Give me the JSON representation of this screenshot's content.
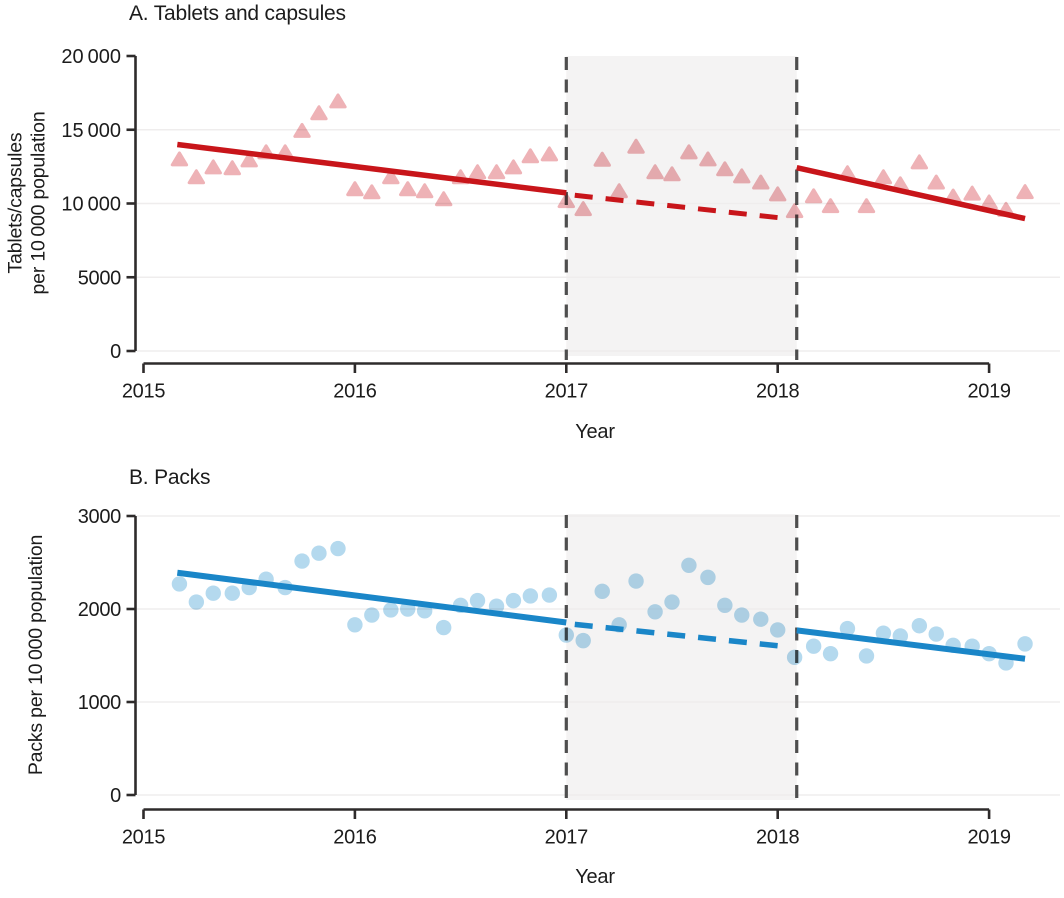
{
  "figure": {
    "shaded_period_years": [
      2017.0,
      2018.09
    ],
    "colors": {
      "band": "#f4f3f3",
      "gridline": "#efeded",
      "dashed_guide": "#4e4e4e",
      "axis": "#2e2b2b",
      "text": "#1c1c1c",
      "panel_a_trend": "#c8151a",
      "panel_a_marker": "#eeb2b6",
      "panel_b_trend": "#1a86c8",
      "panel_b_marker": "#b4d9ee"
    }
  },
  "chart_data": [
    {
      "type": "scatter",
      "panel_id": "a",
      "panel_label": "A. Tablets and capsules",
      "xlabel": "Year",
      "ylabel_lines": [
        "Tablets/capsules",
        "per 10 000 population"
      ],
      "marker": "triangle",
      "colors": {
        "trend": "#c8151a",
        "marker": "#eeb2b6"
      },
      "xlim": [
        2015,
        2019
      ],
      "ylim": [
        0,
        20000
      ],
      "x_ticks": [
        "2015",
        "2016",
        "2017",
        "2018",
        "2019"
      ],
      "y_ticks": [
        {
          "v": 0,
          "label": "0"
        },
        {
          "v": 5000,
          "label": "5000"
        },
        {
          "v": 10000,
          "label": "10 000"
        },
        {
          "v": 15000,
          "label": "15 000"
        },
        {
          "v": 20000,
          "label": "20 000"
        }
      ],
      "grid_skip_top": true,
      "x": [
        2015.17,
        2015.25,
        2015.33,
        2015.42,
        2015.5,
        2015.58,
        2015.67,
        2015.75,
        2015.83,
        2015.92,
        2016.0,
        2016.08,
        2016.17,
        2016.25,
        2016.33,
        2016.42,
        2016.5,
        2016.58,
        2016.67,
        2016.75,
        2016.83,
        2016.92,
        2017.0,
        2017.08,
        2017.17,
        2017.25,
        2017.33,
        2017.42,
        2017.5,
        2017.58,
        2017.67,
        2017.75,
        2017.83,
        2017.92,
        2018.0,
        2018.08,
        2018.17,
        2018.25,
        2018.33,
        2018.42,
        2018.5,
        2018.58,
        2018.67,
        2018.75,
        2018.83,
        2018.92,
        2019.0,
        2019.08,
        2019.17
      ],
      "values": [
        12970,
        11760,
        12430,
        12370,
        12900,
        13450,
        13450,
        14900,
        16100,
        16900,
        10950,
        10740,
        11760,
        10950,
        10810,
        10270,
        11760,
        12100,
        12100,
        12430,
        13180,
        13310,
        10140,
        9600,
        12950,
        10810,
        13830,
        12100,
        11960,
        13450,
        12970,
        12300,
        11820,
        11400,
        10600,
        9460,
        10470,
        9800,
        12030,
        9800,
        11760,
        11280,
        12770,
        11400,
        10450,
        10650,
        10050,
        9550,
        10750
      ],
      "trend_segments": [
        {
          "style": "solid",
          "x1": 2015.16,
          "v1": 14000,
          "x2": 2017.0,
          "v2": 10720
        },
        {
          "style": "dashed",
          "x1": 2017.04,
          "v1": 10560,
          "x2": 2018.06,
          "v2": 8950
        },
        {
          "style": "solid",
          "x1": 2018.09,
          "v1": 12430,
          "x2": 2019.17,
          "v2": 8980
        }
      ]
    },
    {
      "type": "scatter",
      "panel_id": "b",
      "panel_label": "B. Packs",
      "xlabel": "Year",
      "ylabel_lines": [
        "Packs per 10 000 population"
      ],
      "marker": "circle",
      "colors": {
        "trend": "#1a86c8",
        "marker": "#b4d9ee"
      },
      "xlim": [
        2015,
        2019
      ],
      "ylim": [
        0,
        3000
      ],
      "x_ticks": [
        "2015",
        "2016",
        "2017",
        "2018",
        "2019"
      ],
      "y_ticks": [
        {
          "v": 0,
          "label": "0"
        },
        {
          "v": 1000,
          "label": "1000"
        },
        {
          "v": 2000,
          "label": "2000"
        },
        {
          "v": 3000,
          "label": "3000"
        }
      ],
      "grid_skip_top": false,
      "x": [
        2015.17,
        2015.25,
        2015.33,
        2015.42,
        2015.5,
        2015.58,
        2015.67,
        2015.75,
        2015.83,
        2015.92,
        2016.0,
        2016.08,
        2016.17,
        2016.25,
        2016.33,
        2016.42,
        2016.5,
        2016.58,
        2016.67,
        2016.75,
        2016.83,
        2016.92,
        2017.0,
        2017.08,
        2017.17,
        2017.25,
        2017.33,
        2017.42,
        2017.5,
        2017.58,
        2017.67,
        2017.75,
        2017.83,
        2017.92,
        2018.0,
        2018.08,
        2018.17,
        2018.25,
        2018.33,
        2018.42,
        2018.5,
        2018.58,
        2018.67,
        2018.75,
        2018.83,
        2018.92,
        2019.0,
        2019.08,
        2019.17
      ],
      "values": [
        2270,
        2075,
        2170,
        2170,
        2230,
        2320,
        2230,
        2515,
        2600,
        2650,
        1830,
        1935,
        1990,
        2000,
        1980,
        1800,
        2040,
        2090,
        2030,
        2090,
        2140,
        2150,
        1720,
        1660,
        2190,
        1830,
        2300,
        1970,
        2075,
        2470,
        2340,
        2040,
        1935,
        1890,
        1775,
        1480,
        1600,
        1520,
        1790,
        1495,
        1740,
        1710,
        1820,
        1730,
        1610,
        1600,
        1520,
        1420,
        1625
      ],
      "trend_segments": [
        {
          "style": "solid",
          "x1": 2015.16,
          "v1": 2390,
          "x2": 2017.0,
          "v2": 1855
        },
        {
          "style": "dashed",
          "x1": 2017.04,
          "v1": 1835,
          "x2": 2018.06,
          "v2": 1590
        },
        {
          "style": "solid",
          "x1": 2018.09,
          "v1": 1770,
          "x2": 2019.17,
          "v2": 1465
        }
      ]
    }
  ]
}
